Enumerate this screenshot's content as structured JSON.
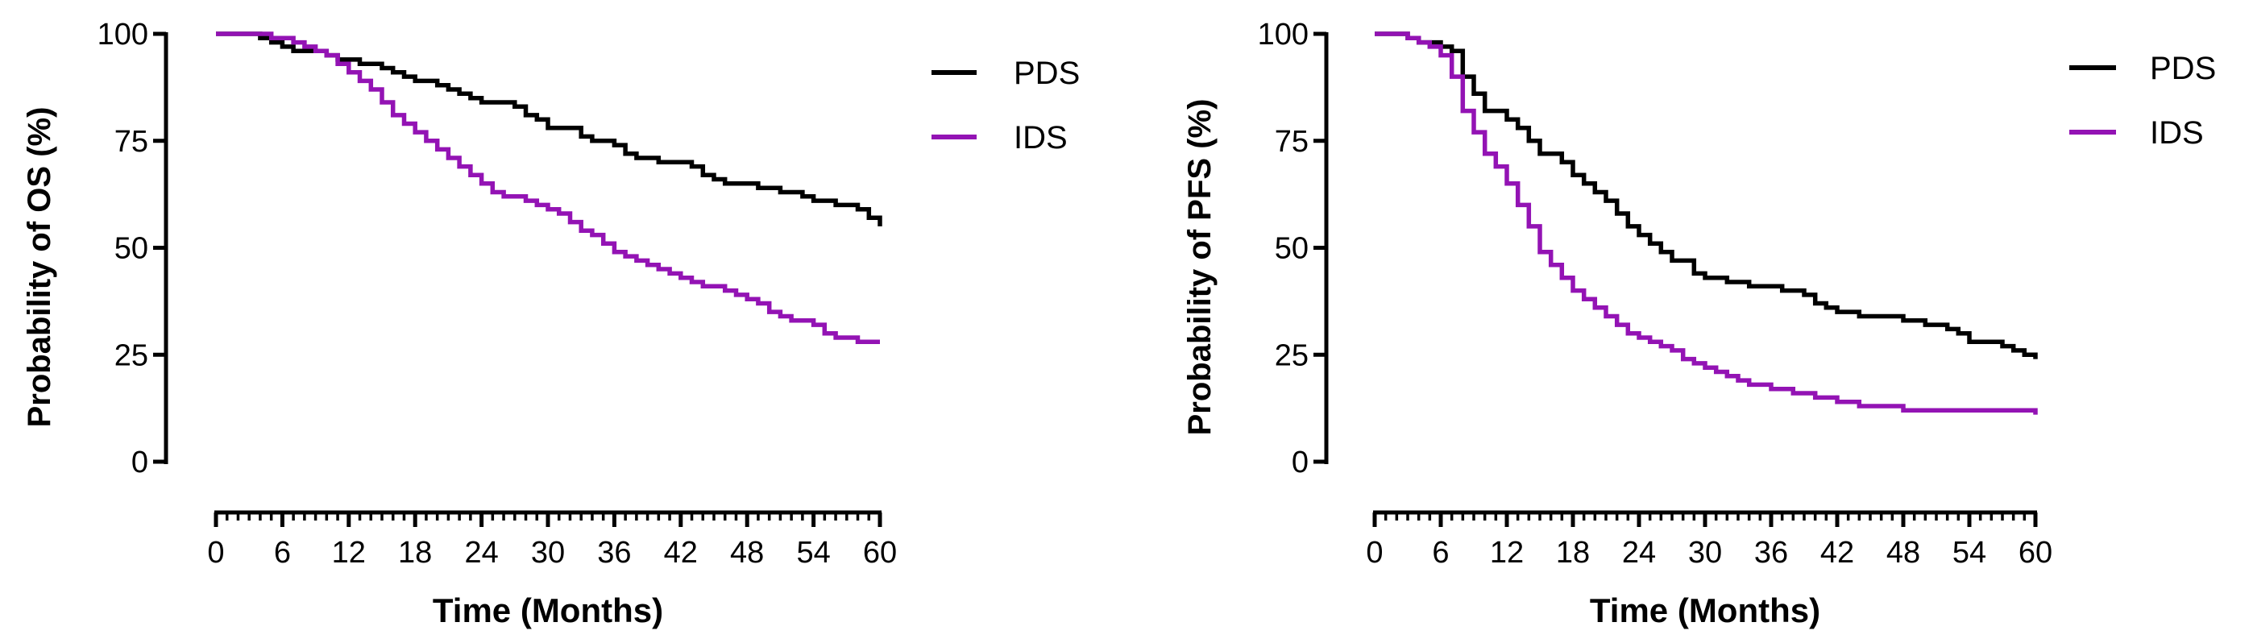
{
  "colors": {
    "PDS": "#000000",
    "IDS": "#9313b4",
    "axis": "#000000"
  },
  "chart_data": [
    {
      "type": "line",
      "step": true,
      "xlabel": "Time (Months)",
      "ylabel": "Probability of OS (%)",
      "xlim": [
        0,
        60
      ],
      "ylim": [
        0,
        100
      ],
      "x_ticks": [
        0,
        6,
        12,
        18,
        24,
        30,
        36,
        42,
        48,
        54,
        60
      ],
      "x_minor_step": 1,
      "y_ticks": [
        0,
        25,
        50,
        75,
        100
      ],
      "grid": false,
      "legend": "top-right",
      "series": [
        {
          "name": "PDS",
          "x": [
            0,
            4,
            5,
            6,
            7,
            10,
            11,
            13,
            15,
            16,
            17,
            18,
            20,
            21,
            22,
            23,
            24,
            27,
            28,
            29,
            30,
            33,
            34,
            36,
            37,
            38,
            39,
            40,
            42,
            43,
            44,
            45,
            46,
            47,
            48,
            49,
            50,
            51,
            53,
            54,
            55,
            56,
            58,
            59,
            60
          ],
          "y": [
            100,
            99,
            98,
            97,
            96,
            95,
            94,
            93,
            92,
            91,
            90,
            89,
            88,
            87,
            86,
            85,
            84,
            83,
            81,
            80,
            78,
            76,
            75,
            74,
            72,
            71,
            71,
            70,
            70,
            69,
            67,
            66,
            65,
            65,
            65,
            64,
            64,
            63,
            62,
            61,
            61,
            60,
            59,
            57,
            55
          ]
        },
        {
          "name": "IDS",
          "x": [
            0,
            5,
            7,
            8,
            9,
            10,
            11,
            12,
            13,
            14,
            15,
            16,
            17,
            18,
            19,
            20,
            21,
            22,
            23,
            24,
            25,
            26,
            27,
            28,
            29,
            30,
            31,
            32,
            33,
            34,
            35,
            36,
            37,
            38,
            39,
            40,
            41,
            42,
            43,
            44,
            45,
            46,
            47,
            48,
            49,
            50,
            51,
            52,
            53,
            54,
            55,
            56,
            57,
            58,
            59,
            60
          ],
          "y": [
            100,
            99,
            98,
            97,
            96,
            95,
            93,
            91,
            89,
            87,
            84,
            81,
            79,
            77,
            75,
            73,
            71,
            69,
            67,
            65,
            63,
            62,
            62,
            61,
            60,
            59,
            58,
            56,
            54,
            53,
            51,
            49,
            48,
            47,
            46,
            45,
            44,
            43,
            42,
            41,
            41,
            40,
            39,
            38,
            37,
            35,
            34,
            33,
            33,
            32,
            30,
            29,
            29,
            28,
            28,
            28
          ]
        }
      ]
    },
    {
      "type": "line",
      "step": true,
      "xlabel": "Time (Months)",
      "ylabel": "Probability of PFS (%)",
      "xlim": [
        0,
        60
      ],
      "ylim": [
        0,
        100
      ],
      "x_ticks": [
        0,
        6,
        12,
        18,
        24,
        30,
        36,
        42,
        48,
        54,
        60
      ],
      "x_minor_step": 1,
      "y_ticks": [
        0,
        25,
        50,
        75,
        100
      ],
      "grid": false,
      "legend": "top-right",
      "series": [
        {
          "name": "PDS",
          "x": [
            0,
            3,
            4,
            6,
            7,
            8,
            9,
            10,
            12,
            13,
            14,
            15,
            17,
            18,
            19,
            20,
            21,
            22,
            23,
            24,
            25,
            26,
            27,
            29,
            30,
            32,
            34,
            36,
            37,
            38,
            39,
            40,
            41,
            42,
            44,
            46,
            47,
            48,
            49,
            50,
            52,
            53,
            54,
            56,
            57,
            58,
            59,
            60
          ],
          "y": [
            100,
            99,
            98,
            97,
            96,
            90,
            86,
            82,
            80,
            78,
            75,
            72,
            70,
            67,
            65,
            63,
            61,
            58,
            55,
            53,
            51,
            49,
            47,
            44,
            43,
            42,
            41,
            41,
            40,
            40,
            39,
            37,
            36,
            35,
            34,
            34,
            34,
            33,
            33,
            32,
            31,
            30,
            28,
            28,
            27,
            26,
            25,
            24
          ]
        },
        {
          "name": "IDS",
          "x": [
            0,
            3,
            4,
            5,
            6,
            7,
            8,
            9,
            10,
            11,
            12,
            13,
            14,
            15,
            16,
            17,
            18,
            19,
            20,
            21,
            22,
            23,
            24,
            25,
            26,
            27,
            28,
            29,
            30,
            31,
            32,
            33,
            34,
            36,
            38,
            40,
            42,
            44,
            46,
            48,
            60
          ],
          "y": [
            100,
            99,
            98,
            97,
            95,
            90,
            82,
            77,
            72,
            69,
            65,
            60,
            55,
            49,
            46,
            43,
            40,
            38,
            36,
            34,
            32,
            30,
            29,
            28,
            27,
            26,
            24,
            23,
            22,
            21,
            20,
            19,
            18,
            17,
            16,
            15,
            14,
            13,
            13,
            12,
            11
          ]
        }
      ]
    }
  ]
}
